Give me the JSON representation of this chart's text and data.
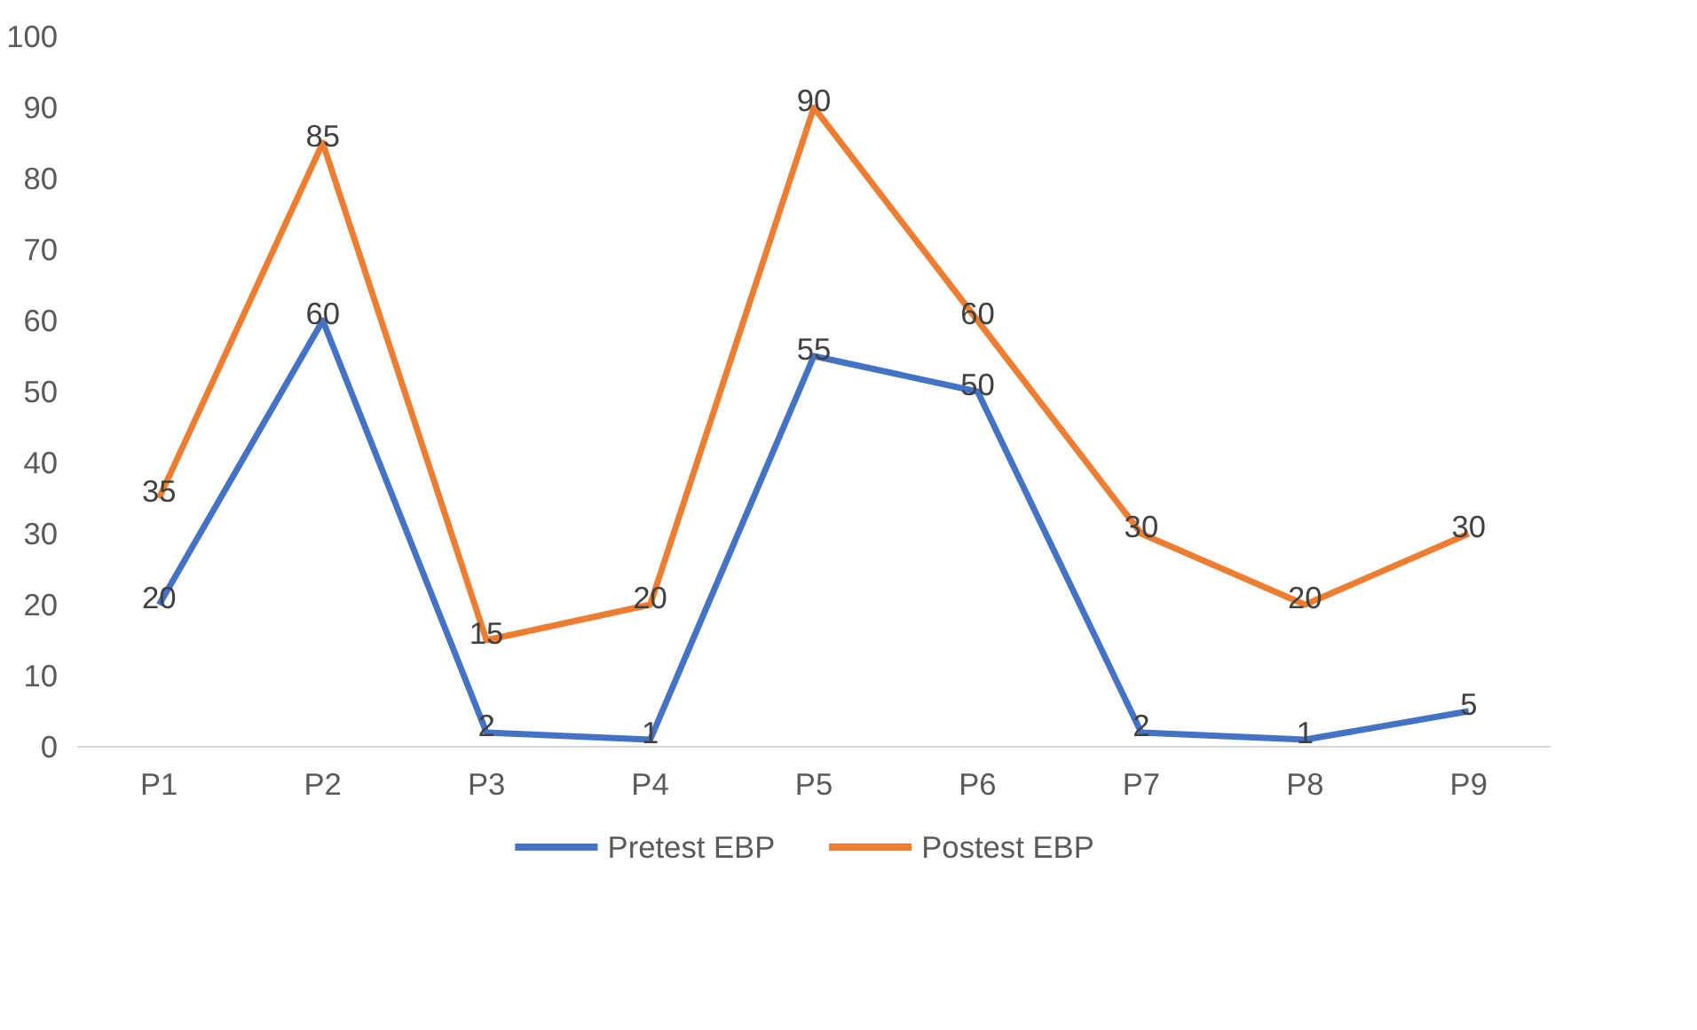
{
  "chart_data": {
    "type": "line",
    "categories": [
      "P1",
      "P2",
      "P3",
      "P4",
      "P5",
      "P6",
      "P7",
      "P8",
      "P9"
    ],
    "series": [
      {
        "name": "Pretest EBP",
        "color": "#4472c4",
        "values": [
          20,
          60,
          2,
          1,
          55,
          50,
          2,
          1,
          5
        ]
      },
      {
        "name": "Postest EBP",
        "color": "#ed7d31",
        "values": [
          35,
          85,
          15,
          20,
          90,
          60,
          30,
          20,
          30
        ]
      }
    ],
    "ylim": [
      0,
      100
    ],
    "yticks": [
      0,
      10,
      20,
      30,
      40,
      50,
      60,
      70,
      80,
      90,
      100
    ],
    "grid": false,
    "legend": "bottom",
    "data_labels": true,
    "marker": "none",
    "line_style": "solid"
  }
}
